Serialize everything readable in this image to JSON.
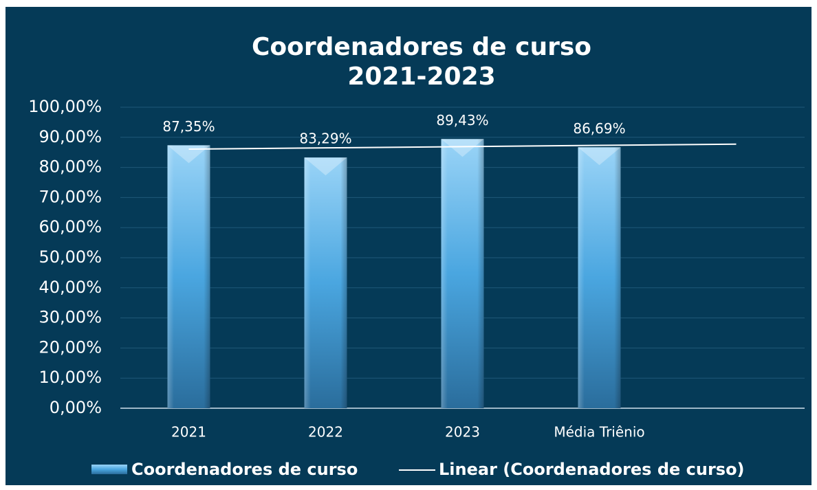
{
  "chart_data": {
    "type": "bar",
    "title": [
      "Coordenadores de curso",
      "2021-2023"
    ],
    "categories": [
      "2021",
      "2022",
      "2023",
      "Média Triênio",
      null
    ],
    "series": [
      {
        "name": "Coordenadores de curso",
        "color": "#5ab0e8",
        "values": [
          87.35,
          83.29,
          89.43,
          86.69,
          null
        ],
        "value_labels": [
          "87,35%",
          "83,29%",
          "89,43%",
          "86,69%",
          null
        ]
      },
      {
        "name": "Linear (Coordenadores de curso)",
        "type": "line",
        "color": "#ffffff",
        "values": [
          86.07,
          86.49,
          86.9,
          87.32,
          87.73
        ]
      }
    ],
    "ylim": [
      0,
      100
    ],
    "yticks": [
      {
        "value": 0,
        "label": "0,00%"
      },
      {
        "value": 10,
        "label": "10,00%"
      },
      {
        "value": 20,
        "label": "20,00%"
      },
      {
        "value": 30,
        "label": "30,00%"
      },
      {
        "value": 40,
        "label": "40,00%"
      },
      {
        "value": 50,
        "label": "50,00%"
      },
      {
        "value": 60,
        "label": "60,00%"
      },
      {
        "value": 70,
        "label": "70,00%"
      },
      {
        "value": 80,
        "label": "80,00%"
      },
      {
        "value": 90,
        "label": "90,00%"
      },
      {
        "value": 100,
        "label": "100,00%"
      }
    ],
    "grid": true,
    "legend": "bottom"
  }
}
